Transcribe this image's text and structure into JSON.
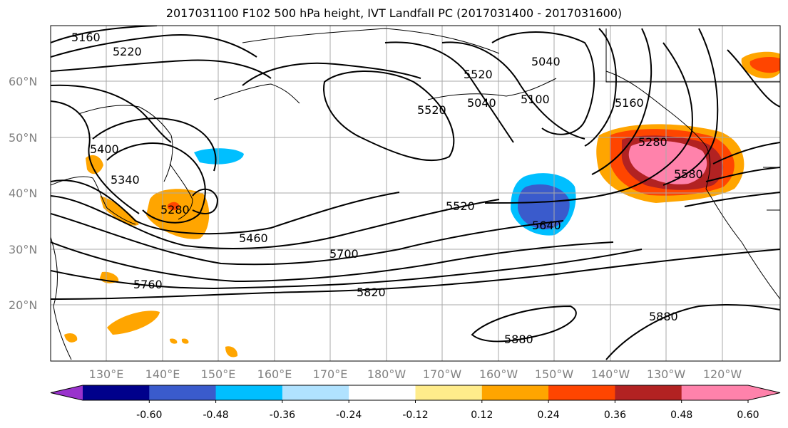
{
  "title": "2017031100 F102 500 hPa height, IVT Landfall PC (2017031400 - 2017031600)",
  "lat_labels": [
    "60°N",
    "50°N",
    "40°N",
    "30°N",
    "20°N"
  ],
  "lon_labels": [
    "130°E",
    "140°E",
    "150°E",
    "160°E",
    "170°E",
    "180°W",
    "170°W",
    "160°W",
    "150°W",
    "140°W",
    "130°W",
    "120°W"
  ],
  "contour_labels": [
    "5160",
    "5220",
    "5040",
    "5520",
    "5520",
    "5040",
    "5100",
    "5160",
    "5280",
    "5580",
    "5400",
    "5340",
    "5280",
    "5460",
    "5520",
    "5640",
    "5700",
    "5760",
    "5820",
    "5880",
    "5880"
  ],
  "colorbar": {
    "ticks": [
      "-0.60",
      "-0.48",
      "-0.36",
      "-0.24",
      "-0.12",
      "0.12",
      "0.24",
      "0.36",
      "0.48",
      "0.60"
    ],
    "colors": [
      "#9932cc",
      "#00008b",
      "#3a5bcc",
      "#00bfff",
      "#b0e2ff",
      "#ffffff",
      "#ffec8b",
      "#ffa500",
      "#ff4500",
      "#b22222",
      "#ff82ab",
      "#ff82ab"
    ]
  }
}
